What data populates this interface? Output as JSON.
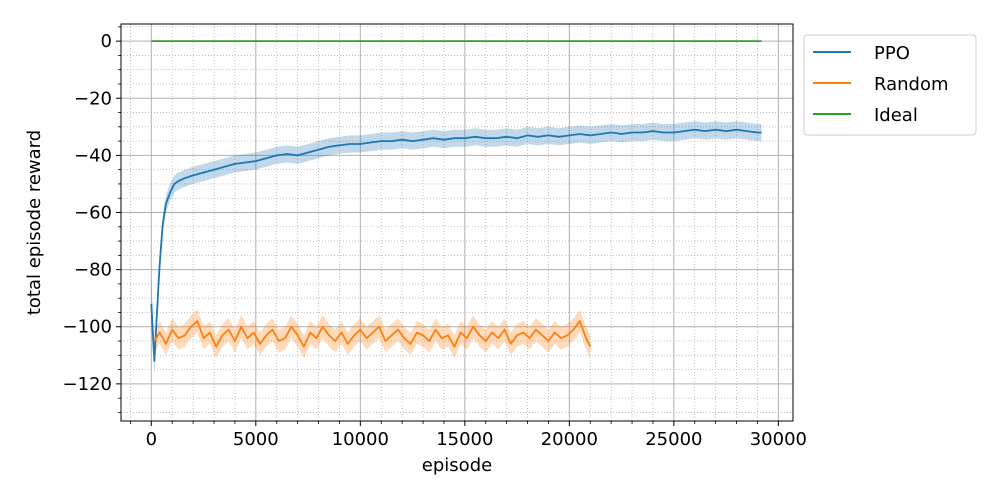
{
  "chart_data": {
    "type": "line",
    "title": "",
    "xlabel": "episode",
    "ylabel": "total episode reward",
    "xlim": [
      -1450,
      30700
    ],
    "ylim": [
      -133,
      6
    ],
    "x_ticks": [
      0,
      5000,
      10000,
      15000,
      20000,
      25000,
      30000
    ],
    "y_ticks": [
      0,
      -20,
      -40,
      -60,
      -80,
      -100,
      -120
    ],
    "x_minor_step": 1000,
    "y_minor_step": 5,
    "grid": "major solid, minor dotted",
    "legend_position": "outside top-right",
    "series": [
      {
        "name": "PPO",
        "color": "#1f77b4",
        "band_color": "#1f77b4",
        "x": [
          0,
          150,
          250,
          400,
          550,
          700,
          900,
          1100,
          1300,
          1600,
          2000,
          2500,
          3000,
          3500,
          4000,
          4500,
          5000,
          5500,
          6000,
          6500,
          7000,
          7500,
          8000,
          8500,
          9000,
          9500,
          10000,
          10500,
          11000,
          11500,
          12000,
          12500,
          13000,
          13500,
          14000,
          14500,
          15000,
          15500,
          16000,
          16500,
          17000,
          17500,
          18000,
          18500,
          19000,
          19500,
          20000,
          20500,
          21000,
          21500,
          22000,
          22500,
          23000,
          23500,
          24000,
          24500,
          25000,
          25500,
          26000,
          26500,
          27000,
          27500,
          28000,
          28500,
          29000,
          29200
        ],
        "y": [
          -92,
          -112,
          -98,
          -78,
          -64,
          -57,
          -53,
          -50,
          -49,
          -48,
          -47,
          -46,
          -45,
          -44,
          -43,
          -42.5,
          -42,
          -41,
          -40,
          -39.5,
          -40,
          -39,
          -38,
          -37,
          -36.5,
          -36,
          -36,
          -35.5,
          -35,
          -35,
          -34.5,
          -35,
          -34.5,
          -34,
          -34.5,
          -34,
          -34,
          -33.5,
          -34,
          -34,
          -33.5,
          -34,
          -33,
          -33.5,
          -33,
          -33.5,
          -33,
          -32.5,
          -33,
          -32.5,
          -32,
          -32.5,
          -32,
          -32,
          -31.5,
          -32,
          -32,
          -31.5,
          -31,
          -31.5,
          -31,
          -31.5,
          -31,
          -31.5,
          -32,
          -32
        ],
        "band_halfwidth": [
          10,
          4,
          4,
          4,
          3,
          3,
          3,
          3,
          3,
          3,
          3,
          3,
          3,
          3,
          3,
          3,
          3,
          3,
          3,
          3,
          3,
          3,
          3,
          3,
          3,
          3,
          3,
          3,
          3,
          3,
          3,
          3,
          3,
          3,
          3,
          3,
          3,
          3,
          3,
          3,
          3,
          3,
          3,
          3,
          3,
          3,
          3,
          3,
          3,
          3,
          3,
          3,
          3,
          3,
          3,
          3,
          3,
          3,
          3,
          3,
          3,
          3,
          3,
          3,
          3,
          3
        ]
      },
      {
        "name": "Random",
        "color": "#ff7f0e",
        "band_color": "#ff7f0e",
        "x": [
          150,
          400,
          700,
          1000,
          1300,
          1600,
          1900,
          2200,
          2500,
          2800,
          3100,
          3400,
          3700,
          4000,
          4300,
          4600,
          4900,
          5200,
          5500,
          5800,
          6100,
          6400,
          6700,
          7000,
          7300,
          7600,
          7900,
          8200,
          8500,
          8800,
          9100,
          9400,
          9700,
          10000,
          10300,
          10600,
          10900,
          11200,
          11500,
          11800,
          12100,
          12400,
          12700,
          13000,
          13300,
          13600,
          13900,
          14200,
          14500,
          14800,
          15100,
          15400,
          15700,
          16000,
          16300,
          16600,
          16900,
          17200,
          17500,
          17800,
          18100,
          18400,
          18700,
          19000,
          19300,
          19600,
          19900,
          20200,
          20500,
          20800,
          21000
        ],
        "y": [
          -105,
          -102,
          -106,
          -101,
          -104,
          -103,
          -100,
          -98,
          -104,
          -102,
          -107,
          -103,
          -101,
          -105,
          -100,
          -104,
          -102,
          -106,
          -103,
          -101,
          -105,
          -104,
          -100,
          -103,
          -107,
          -102,
          -104,
          -100,
          -103,
          -105,
          -102,
          -106,
          -103,
          -101,
          -104,
          -102,
          -100,
          -105,
          -103,
          -101,
          -104,
          -106,
          -102,
          -103,
          -105,
          -101,
          -104,
          -103,
          -107,
          -102,
          -104,
          -100,
          -103,
          -105,
          -102,
          -104,
          -101,
          -106,
          -103,
          -102,
          -104,
          -101,
          -103,
          -105,
          -102,
          -104,
          -103,
          -101,
          -98,
          -104,
          -107
        ],
        "band_halfwidth": [
          4,
          4,
          4,
          4,
          4,
          4,
          4,
          4,
          4,
          4,
          4,
          4,
          4,
          4,
          4,
          4,
          4,
          4,
          4,
          4,
          4,
          4,
          4,
          4,
          4,
          4,
          4,
          4,
          4,
          4,
          4,
          4,
          4,
          4,
          4,
          4,
          4,
          4,
          4,
          4,
          4,
          4,
          4,
          4,
          4,
          4,
          4,
          4,
          4,
          4,
          4,
          4,
          4,
          4,
          4,
          4,
          4,
          4,
          4,
          4,
          4,
          4,
          4,
          4,
          4,
          4,
          4,
          4,
          4,
          4,
          4
        ]
      },
      {
        "name": "Ideal",
        "color": "#2ca02c",
        "x": [
          0,
          29200
        ],
        "y": [
          0,
          0
        ]
      }
    ]
  }
}
